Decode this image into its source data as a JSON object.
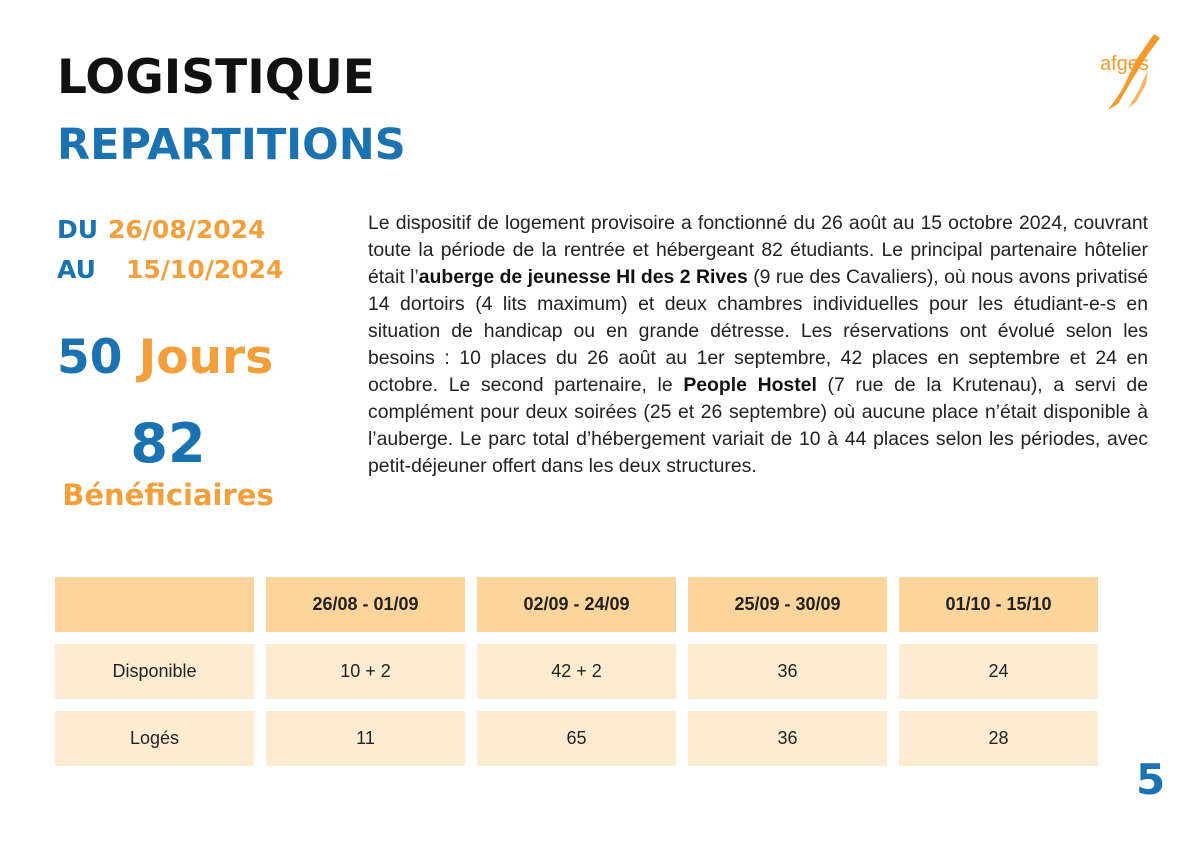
{
  "header": {
    "title": "LOGISTIQUE",
    "subtitle": "REPARTITIONS",
    "logo": "afges"
  },
  "period": {
    "from_label": "DU",
    "from_date": "26/08/2024",
    "to_label": "AU",
    "to_date": "15/10/2024"
  },
  "stats": {
    "days_number": "50",
    "days_label": "Jours",
    "beneficiaries_number": "82",
    "beneficiaries_label": "Bénéficiaires"
  },
  "paragraph": [
    {
      "text": "Le dispositif de logement provisoire a fonctionné du 26 août au 15 octobre 2024, couvrant toute la période de la rentrée et hébergeant 82 étudiants. Le principal partenaire hôtelier était l’",
      "bold": false
    },
    {
      "text": "auberge de jeunesse HI des 2 Rives",
      "bold": true
    },
    {
      "text": " (9 rue des Cavaliers), où nous avons privatisé 14 dortoirs (4 lits maximum) et deux chambres individuelles pour les étudiant-e-s en situation de handicap ou en grande détresse. Les réservations ont évolué selon les besoins : 10 places du 26 août au 1er septembre, 42 places en septembre et 24 en octobre. Le second partenaire, le ",
      "bold": false
    },
    {
      "text": "People Hostel",
      "bold": true
    },
    {
      "text": " (7 rue de la Krutenau), a servi de complément pour deux soirées (25 et 26 septembre) où aucune place n’était disponible à l’auberge. Le parc total d’hébergement variait de 10 à 44 places selon les périodes, avec petit-déjeuner offert dans les deux structures.",
      "bold": false
    }
  ],
  "table": {
    "columns": [
      "26/08 - 01/09",
      "02/09 - 24/09",
      "25/09 - 30/09",
      "01/10 - 15/10"
    ],
    "rows": [
      [
        "Disponible",
        "10 + 2",
        "42 + 2",
        "36",
        "24"
      ],
      [
        "Logés",
        "11",
        "65",
        "36",
        "28"
      ]
    ]
  },
  "page_number": "5"
}
